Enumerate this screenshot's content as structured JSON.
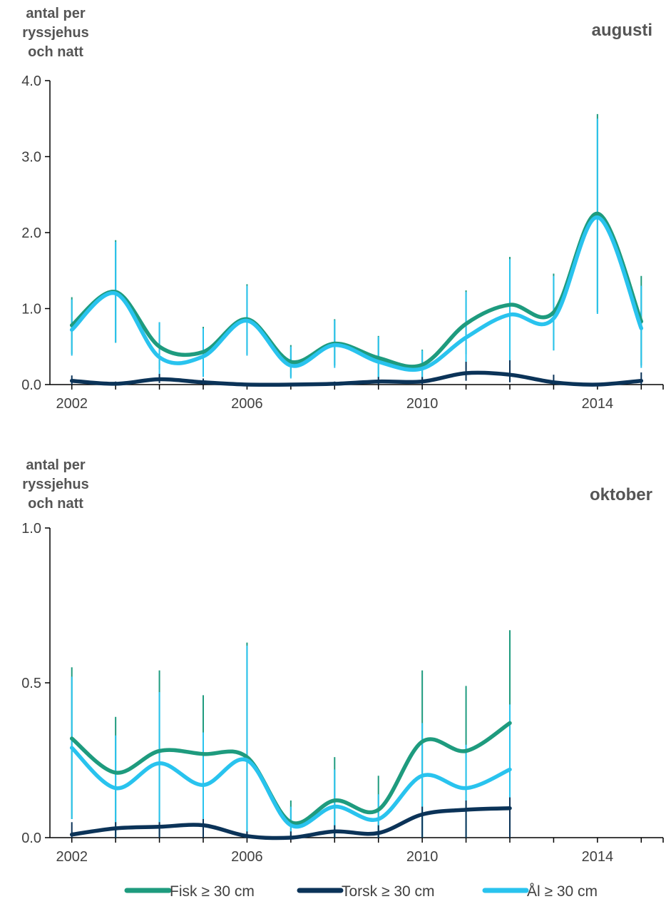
{
  "chart_data": [
    {
      "type": "line",
      "title": "augusti",
      "ylabel": [
        "antal per",
        "ryssjehus",
        "och natt"
      ],
      "xlabel": "",
      "x": [
        2002,
        2003,
        2004,
        2005,
        2006,
        2007,
        2008,
        2009,
        2010,
        2011,
        2012,
        2013,
        2014,
        2015
      ],
      "xticks": [
        2002,
        2006,
        2010,
        2014
      ],
      "xlim": [
        2001.5,
        2015.5
      ],
      "ylim": [
        0,
        4
      ],
      "yticks": [
        "0.0",
        "1.0",
        "2.0",
        "3.0",
        "4.0"
      ],
      "ytick_values": [
        0,
        1,
        2,
        3,
        4
      ],
      "series": [
        {
          "name": "Fisk ≥ 30 cm",
          "color": "#1e9b7e",
          "values": [
            0.78,
            1.22,
            0.5,
            0.43,
            0.86,
            0.3,
            0.54,
            0.35,
            0.26,
            0.8,
            1.05,
            0.95,
            2.25,
            0.83
          ],
          "err_low": [
            0.4,
            0.55,
            0.2,
            0.15,
            0.4,
            0.1,
            0.25,
            0.1,
            0.05,
            0.4,
            0.55,
            0.45,
            0.95,
            0.25
          ],
          "err_high": [
            1.15,
            1.9,
            0.82,
            0.76,
            1.32,
            0.52,
            0.86,
            0.64,
            0.46,
            1.24,
            1.68,
            1.46,
            3.56,
            1.43
          ]
        },
        {
          "name": "Torsk ≥ 30 cm",
          "color": "#0b3358",
          "values": [
            0.05,
            0.01,
            0.07,
            0.03,
            0.0,
            0.0,
            0.01,
            0.04,
            0.04,
            0.15,
            0.13,
            0.03,
            0.0,
            0.05
          ],
          "err_low": [
            0.0,
            0.0,
            0.02,
            0.0,
            0.0,
            0.0,
            0.0,
            0.0,
            0.0,
            0.05,
            0.03,
            0.0,
            0.0,
            0.0
          ],
          "err_high": [
            0.12,
            0.04,
            0.14,
            0.08,
            0.02,
            0.02,
            0.04,
            0.1,
            0.1,
            0.3,
            0.32,
            0.13,
            0.02,
            0.16
          ]
        },
        {
          "name": "Ål ≥ 30 cm",
          "color": "#29c3ee",
          "values": [
            0.72,
            1.2,
            0.36,
            0.37,
            0.84,
            0.25,
            0.52,
            0.3,
            0.21,
            0.62,
            0.92,
            0.87,
            2.2,
            0.74
          ],
          "err_low": [
            0.38,
            0.55,
            0.1,
            0.1,
            0.38,
            0.08,
            0.22,
            0.08,
            0.03,
            0.2,
            0.3,
            0.45,
            0.93,
            0.22
          ],
          "err_high": [
            1.12,
            1.88,
            0.82,
            0.74,
            1.3,
            0.5,
            0.85,
            0.63,
            0.45,
            1.22,
            1.65,
            1.43,
            3.5,
            1.3
          ]
        }
      ]
    },
    {
      "type": "line",
      "title": "oktober",
      "ylabel": [
        "antal per",
        "ryssjehus",
        "och natt"
      ],
      "xlabel": "",
      "x": [
        2002,
        2003,
        2004,
        2005,
        2006,
        2007,
        2008,
        2009,
        2010,
        2011,
        2012
      ],
      "xticks": [
        2002,
        2006,
        2010,
        2014
      ],
      "xlim": [
        2001.5,
        2015.5
      ],
      "ylim": [
        0,
        1
      ],
      "yticks": [
        "0.0",
        "0.5",
        "1.0"
      ],
      "ytick_values": [
        0,
        0.5,
        1
      ],
      "series": [
        {
          "name": "Fisk ≥ 30 cm",
          "color": "#1e9b7e",
          "values": [
            0.32,
            0.21,
            0.28,
            0.27,
            0.26,
            0.05,
            0.12,
            0.09,
            0.31,
            0.28,
            0.37
          ],
          "err_low": [
            0.06,
            0.0,
            0.0,
            0.0,
            0.0,
            0.0,
            0.0,
            0.0,
            0.0,
            0.0,
            0.0
          ],
          "err_high": [
            0.55,
            0.39,
            0.54,
            0.46,
            0.63,
            0.12,
            0.26,
            0.2,
            0.54,
            0.49,
            0.67
          ]
        },
        {
          "name": "Torsk ≥ 30 cm",
          "color": "#0b3358",
          "values": [
            0.01,
            0.03,
            0.035,
            0.04,
            0.005,
            0.0,
            0.02,
            0.015,
            0.075,
            0.09,
            0.095
          ],
          "err_low": [
            0.0,
            0.0,
            0.0,
            0.0,
            0.0,
            0.0,
            0.0,
            0.0,
            0.0,
            0.0,
            0.0
          ],
          "err_high": [
            0.05,
            0.05,
            0.05,
            0.06,
            0.02,
            0.02,
            0.04,
            0.04,
            0.1,
            0.12,
            0.13
          ]
        },
        {
          "name": "Ål ≥ 30 cm",
          "color": "#29c3ee",
          "values": [
            0.29,
            0.16,
            0.24,
            0.17,
            0.25,
            0.04,
            0.1,
            0.06,
            0.2,
            0.16,
            0.22
          ],
          "err_low": [
            0.06,
            0.0,
            0.0,
            0.0,
            0.0,
            0.0,
            0.0,
            0.0,
            0.0,
            0.0,
            0.0
          ],
          "err_high": [
            0.52,
            0.33,
            0.47,
            0.34,
            0.62,
            0.1,
            0.22,
            0.14,
            0.37,
            0.3,
            0.43
          ]
        }
      ]
    }
  ],
  "legend": {
    "position": "bottom",
    "items": [
      {
        "label": "Fisk ≥ 30 cm",
        "color": "#1e9b7e"
      },
      {
        "label": "Torsk ≥ 30 cm",
        "color": "#0b3358"
      },
      {
        "label": "Ål ≥ 30 cm",
        "color": "#29c3ee"
      }
    ]
  }
}
